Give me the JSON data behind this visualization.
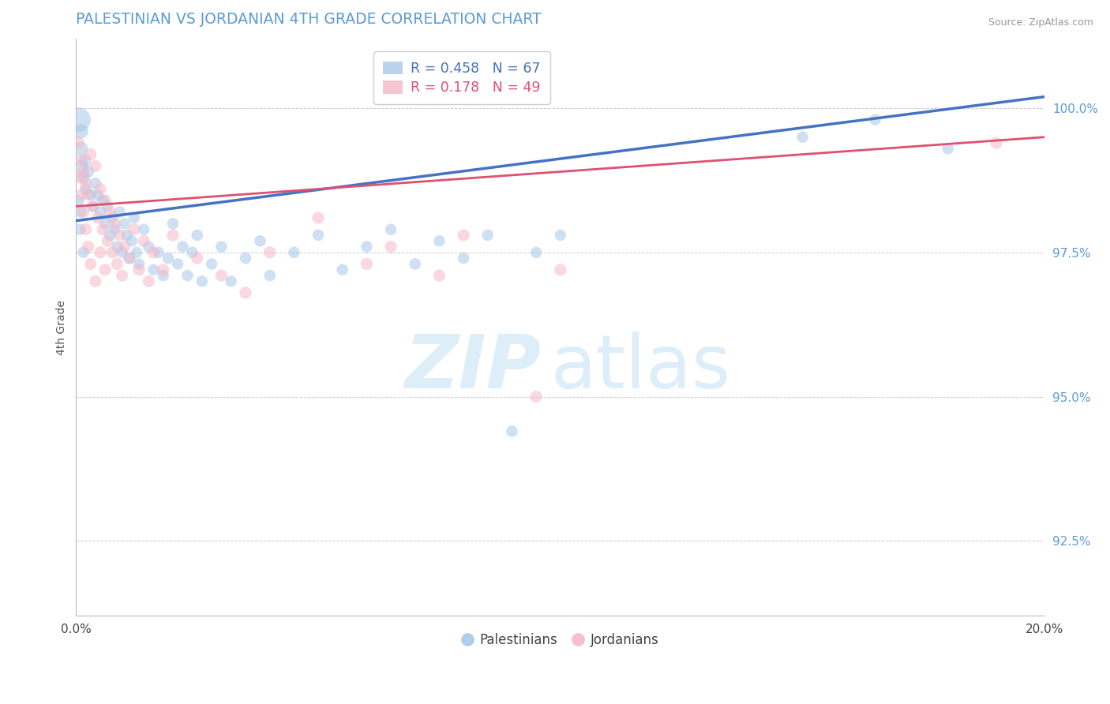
{
  "title": "PALESTINIAN VS JORDANIAN 4TH GRADE CORRELATION CHART",
  "source": "Source: ZipAtlas.com",
  "ylabel": "4th Grade",
  "ytick_labels": [
    "92.5%",
    "95.0%",
    "97.5%",
    "100.0%"
  ],
  "ytick_values": [
    92.5,
    95.0,
    97.5,
    100.0
  ],
  "xlim": [
    0.0,
    20.0
  ],
  "ylim": [
    91.2,
    101.2
  ],
  "legend_blue_label": "Palestinians",
  "legend_pink_label": "Jordanians",
  "R_blue": 0.458,
  "N_blue": 67,
  "R_pink": 0.178,
  "N_pink": 49,
  "blue_color": "#a8c8e8",
  "pink_color": "#f5b8c8",
  "blue_line_color": "#4472c4",
  "pink_line_color": "#e05070",
  "title_color": "#5b9bd5",
  "watermark_zip": "ZIP",
  "watermark_atlas": "atlas",
  "watermark_color": "#ddeef8",
  "blue_line_x": [
    0,
    20
  ],
  "blue_line_y": [
    98.05,
    100.2
  ],
  "pink_line_x": [
    0,
    20
  ],
  "pink_line_y": [
    98.3,
    99.5
  ],
  "blue_points": [
    [
      0.05,
      99.8
    ],
    [
      0.1,
      99.6
    ],
    [
      0.1,
      99.3
    ],
    [
      0.12,
      99.0
    ],
    [
      0.15,
      98.8
    ],
    [
      0.18,
      99.1
    ],
    [
      0.2,
      98.6
    ],
    [
      0.25,
      98.9
    ],
    [
      0.3,
      98.5
    ],
    [
      0.35,
      98.3
    ],
    [
      0.4,
      98.7
    ],
    [
      0.45,
      98.5
    ],
    [
      0.5,
      98.2
    ],
    [
      0.55,
      98.4
    ],
    [
      0.6,
      98.0
    ],
    [
      0.65,
      98.3
    ],
    [
      0.7,
      97.8
    ],
    [
      0.75,
      98.1
    ],
    [
      0.8,
      97.9
    ],
    [
      0.85,
      97.6
    ],
    [
      0.9,
      98.2
    ],
    [
      0.95,
      97.5
    ],
    [
      1.0,
      98.0
    ],
    [
      1.05,
      97.8
    ],
    [
      1.1,
      97.4
    ],
    [
      1.15,
      97.7
    ],
    [
      1.2,
      98.1
    ],
    [
      1.25,
      97.5
    ],
    [
      1.3,
      97.3
    ],
    [
      1.4,
      97.9
    ],
    [
      1.5,
      97.6
    ],
    [
      1.6,
      97.2
    ],
    [
      1.7,
      97.5
    ],
    [
      1.8,
      97.1
    ],
    [
      1.9,
      97.4
    ],
    [
      2.0,
      98.0
    ],
    [
      2.1,
      97.3
    ],
    [
      2.2,
      97.6
    ],
    [
      2.3,
      97.1
    ],
    [
      2.4,
      97.5
    ],
    [
      2.5,
      97.8
    ],
    [
      2.6,
      97.0
    ],
    [
      2.8,
      97.3
    ],
    [
      3.0,
      97.6
    ],
    [
      3.2,
      97.0
    ],
    [
      3.5,
      97.4
    ],
    [
      3.8,
      97.7
    ],
    [
      4.0,
      97.1
    ],
    [
      4.5,
      97.5
    ],
    [
      5.0,
      97.8
    ],
    [
      5.5,
      97.2
    ],
    [
      6.0,
      97.6
    ],
    [
      6.5,
      97.9
    ],
    [
      7.0,
      97.3
    ],
    [
      7.5,
      97.7
    ],
    [
      8.0,
      97.4
    ],
    [
      8.5,
      97.8
    ],
    [
      9.0,
      94.4
    ],
    [
      9.5,
      97.5
    ],
    [
      10.0,
      97.8
    ],
    [
      15.0,
      99.5
    ],
    [
      16.5,
      99.8
    ],
    [
      18.0,
      99.3
    ],
    [
      0.05,
      98.4
    ],
    [
      0.08,
      97.9
    ],
    [
      0.1,
      98.2
    ],
    [
      0.15,
      97.5
    ]
  ],
  "blue_point_sizes": [
    500,
    180,
    160,
    150,
    130,
    130,
    120,
    120,
    110,
    110,
    110,
    110,
    110,
    110,
    110,
    110,
    110,
    110,
    110,
    110,
    110,
    110,
    110,
    110,
    110,
    110,
    110,
    110,
    110,
    110,
    110,
    110,
    110,
    110,
    110,
    110,
    110,
    110,
    110,
    110,
    110,
    110,
    110,
    110,
    110,
    110,
    110,
    110,
    110,
    110,
    110,
    110,
    110,
    110,
    110,
    110,
    110,
    110,
    110,
    110,
    110,
    110,
    110,
    110,
    110,
    110,
    110
  ],
  "pink_points": [
    [
      0.05,
      99.4
    ],
    [
      0.1,
      99.1
    ],
    [
      0.15,
      98.9
    ],
    [
      0.2,
      98.7
    ],
    [
      0.25,
      98.5
    ],
    [
      0.3,
      99.2
    ],
    [
      0.35,
      98.3
    ],
    [
      0.4,
      99.0
    ],
    [
      0.45,
      98.1
    ],
    [
      0.5,
      98.6
    ],
    [
      0.55,
      97.9
    ],
    [
      0.6,
      98.4
    ],
    [
      0.65,
      97.7
    ],
    [
      0.7,
      98.2
    ],
    [
      0.75,
      97.5
    ],
    [
      0.8,
      98.0
    ],
    [
      0.85,
      97.3
    ],
    [
      0.9,
      97.8
    ],
    [
      0.95,
      97.1
    ],
    [
      1.0,
      97.6
    ],
    [
      1.1,
      97.4
    ],
    [
      1.2,
      97.9
    ],
    [
      1.3,
      97.2
    ],
    [
      1.4,
      97.7
    ],
    [
      1.5,
      97.0
    ],
    [
      1.6,
      97.5
    ],
    [
      1.8,
      97.2
    ],
    [
      2.0,
      97.8
    ],
    [
      2.5,
      97.4
    ],
    [
      3.0,
      97.1
    ],
    [
      3.5,
      96.8
    ],
    [
      4.0,
      97.5
    ],
    [
      5.0,
      98.1
    ],
    [
      6.0,
      97.3
    ],
    [
      6.5,
      97.6
    ],
    [
      7.5,
      97.1
    ],
    [
      8.0,
      97.8
    ],
    [
      9.5,
      95.0
    ],
    [
      10.0,
      97.2
    ],
    [
      0.05,
      98.8
    ],
    [
      0.1,
      98.5
    ],
    [
      0.15,
      98.2
    ],
    [
      0.2,
      97.9
    ],
    [
      0.25,
      97.6
    ],
    [
      0.3,
      97.3
    ],
    [
      0.4,
      97.0
    ],
    [
      0.5,
      97.5
    ],
    [
      0.6,
      97.2
    ],
    [
      19.0,
      99.4
    ]
  ],
  "pink_point_sizes": [
    120,
    120,
    120,
    120,
    120,
    120,
    120,
    120,
    120,
    120,
    120,
    120,
    120,
    120,
    120,
    120,
    120,
    120,
    120,
    120,
    120,
    120,
    120,
    120,
    120,
    120,
    120,
    120,
    120,
    120,
    120,
    120,
    120,
    120,
    120,
    120,
    120,
    120,
    120,
    120,
    120,
    120,
    120,
    120,
    120,
    120,
    120,
    120,
    120
  ]
}
